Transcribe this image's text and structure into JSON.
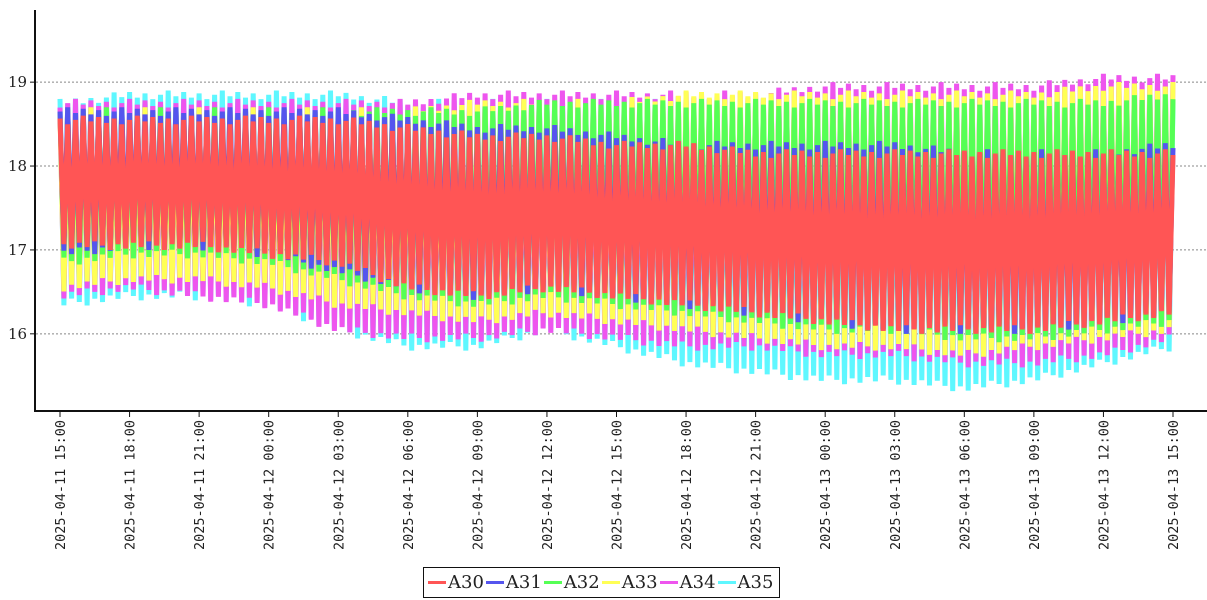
{
  "chart_data": {
    "type": "line",
    "title": "",
    "xlabel": "",
    "ylabel": "",
    "ylim": [
      15.08,
      19.86
    ],
    "yticks": [
      "16",
      "17",
      "18",
      "19"
    ],
    "grid": "horizontal-dashed",
    "legend_placement": "bottom-center",
    "x_ticks": [
      "2025-04-11  15:00",
      "2025-04-11  18:00",
      "2025-04-11  21:00",
      "2025-04-12  00:00",
      "2025-04-12  03:00",
      "2025-04-12  06:00",
      "2025-04-12  09:00",
      "2025-04-12  12:00",
      "2025-04-12  15:00",
      "2025-04-12  18:00",
      "2025-04-12  21:00",
      "2025-04-13  00:00",
      "2025-04-13  03:00",
      "2025-04-13  06:00",
      "2025-04-13  09:00",
      "2025-04-13  12:00",
      "2025-04-13  15:00"
    ],
    "series": [
      {
        "name": "A35",
        "color": "#5ef7ff",
        "high": [
          18.8,
          18.9,
          18.9,
          18.9,
          18.9,
          18.8,
          18.8,
          18.8,
          18.8,
          18.8,
          18.8,
          18.8,
          18.8,
          18.8,
          18.8,
          18.8,
          18.8
        ],
        "low": [
          16.3,
          16.4,
          16.4,
          16.3,
          16.0,
          15.8,
          15.8,
          16.0,
          15.8,
          15.6,
          15.5,
          15.4,
          15.4,
          15.3,
          15.4,
          15.6,
          15.8
        ]
      },
      {
        "name": "A34",
        "color": "#ee55ee",
        "high": [
          18.8,
          18.8,
          18.8,
          18.8,
          18.8,
          18.8,
          18.9,
          18.9,
          18.9,
          18.9,
          18.9,
          19.0,
          19.0,
          19.0,
          19.0,
          19.1,
          19.1
        ],
        "low": [
          16.4,
          16.5,
          16.4,
          16.3,
          16.0,
          15.9,
          15.9,
          16.0,
          15.9,
          15.8,
          15.8,
          15.7,
          15.7,
          15.6,
          15.6,
          15.7,
          15.9
        ]
      },
      {
        "name": "A33",
        "color": "#ffff55",
        "high": [
          18.7,
          18.7,
          18.7,
          18.7,
          18.7,
          18.7,
          18.8,
          18.8,
          18.8,
          18.9,
          18.9,
          18.9,
          18.9,
          18.9,
          18.9,
          19.0,
          19.0
        ],
        "low": [
          16.5,
          16.6,
          16.6,
          16.5,
          16.3,
          16.2,
          16.1,
          16.2,
          16.1,
          16.0,
          15.9,
          15.8,
          15.8,
          15.7,
          15.8,
          15.9,
          16.0
        ]
      },
      {
        "name": "A32",
        "color": "#55ff55",
        "high": [
          18.7,
          18.7,
          18.7,
          18.7,
          18.7,
          18.7,
          18.7,
          18.8,
          18.8,
          18.8,
          18.8,
          18.8,
          18.8,
          18.8,
          18.8,
          18.8,
          18.9
        ],
        "low": [
          16.8,
          16.9,
          16.9,
          16.8,
          16.6,
          16.4,
          16.3,
          16.4,
          16.3,
          16.2,
          16.1,
          16.0,
          16.0,
          15.9,
          15.9,
          16.0,
          16.1
        ]
      },
      {
        "name": "A31",
        "color": "#5555ee",
        "high": [
          18.7,
          18.7,
          18.7,
          18.7,
          18.7,
          18.6,
          18.5,
          18.5,
          18.4,
          18.3,
          18.3,
          18.3,
          18.3,
          18.2,
          18.2,
          18.2,
          18.3
        ],
        "low": [
          16.9,
          17.0,
          17.0,
          16.9,
          16.7,
          16.5,
          16.4,
          16.5,
          16.4,
          16.3,
          16.2,
          16.1,
          16.0,
          16.0,
          16.0,
          16.1,
          16.2
        ]
      },
      {
        "name": "A30",
        "color": "#ff5555",
        "high": [
          18.6,
          18.6,
          18.6,
          18.6,
          18.6,
          18.5,
          18.4,
          18.4,
          18.3,
          18.3,
          18.2,
          18.2,
          18.2,
          18.2,
          18.2,
          18.2,
          18.2
        ],
        "low": [
          17.0,
          17.0,
          17.0,
          16.9,
          16.8,
          16.5,
          16.4,
          16.5,
          16.4,
          16.3,
          16.2,
          16.1,
          16.0,
          16.0,
          16.0,
          16.1,
          16.2
        ]
      }
    ],
    "legend_order": [
      "A30",
      "A31",
      "A32",
      "A33",
      "A34",
      "A35"
    ]
  }
}
